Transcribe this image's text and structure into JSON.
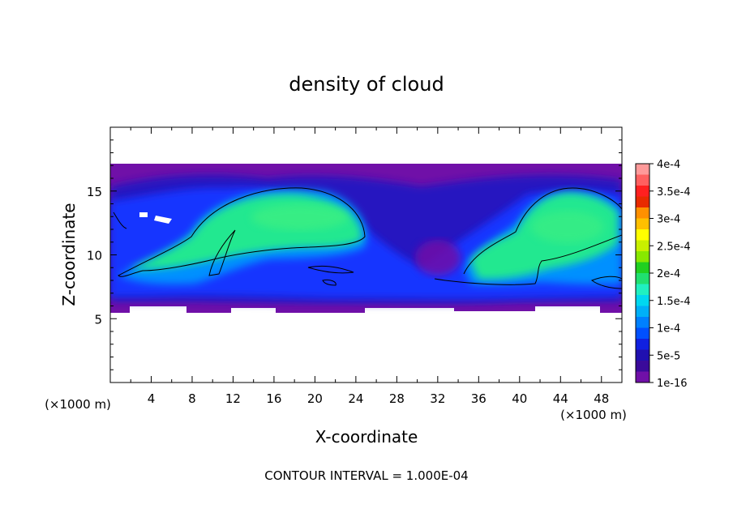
{
  "chart_data": {
    "type": "heatmap",
    "title": "density of cloud",
    "xlabel": "X-coordinate",
    "ylabel": "Z-coordinate",
    "x_units_label": "(×1000 m)",
    "x_units_label_right": "(×1000 m)",
    "xlim": [
      0,
      50
    ],
    "ylim": [
      0,
      20
    ],
    "x_ticks": [
      4,
      8,
      12,
      16,
      20,
      24,
      28,
      32,
      36,
      40,
      44,
      48
    ],
    "x_tick_labels": [
      "4",
      "8",
      "12",
      "16",
      "20",
      "24",
      "28",
      "32",
      "36",
      "40",
      "44",
      "48"
    ],
    "y_ticks": [
      5,
      10,
      15
    ],
    "y_tick_labels": [
      "5",
      "10",
      "15"
    ],
    "footer": "CONTOUR INTERVAL = 1.000E-04",
    "colorbar": {
      "labels": [
        "4e-4",
        "3.5e-4",
        "3e-4",
        "2.5e-4",
        "2e-4",
        "1.5e-4",
        "1e-4",
        "5e-5",
        "1e-16"
      ],
      "colors": [
        "#ff9a9a",
        "#ff6060",
        "#ff2020",
        "#e82a00",
        "#ff9000",
        "#ffc000",
        "#ffff00",
        "#c8f000",
        "#88e800",
        "#20d020",
        "#20e070",
        "#20f0c0",
        "#00d8f0",
        "#00b0f8",
        "#0080ff",
        "#0050ff",
        "#1020e0",
        "#2010b0",
        "#3a0a9a",
        "#7010a8"
      ]
    },
    "levels": [
      {
        "value": "1e-16",
        "color": "#7010a8",
        "region": "cloud envelope z ≈ 5.5–17, x 0–50"
      },
      {
        "value": "5e-5",
        "color": "#1525d8",
        "region": "lower cloud layer z ≈ 6–15"
      },
      {
        "value": "1e-4",
        "color": "#0080ff"
      },
      {
        "value": "1.5e-4",
        "color": "#20e890",
        "region": "cores near x 12–20, z 10–15 and x 36–48, z 9–14"
      }
    ]
  }
}
